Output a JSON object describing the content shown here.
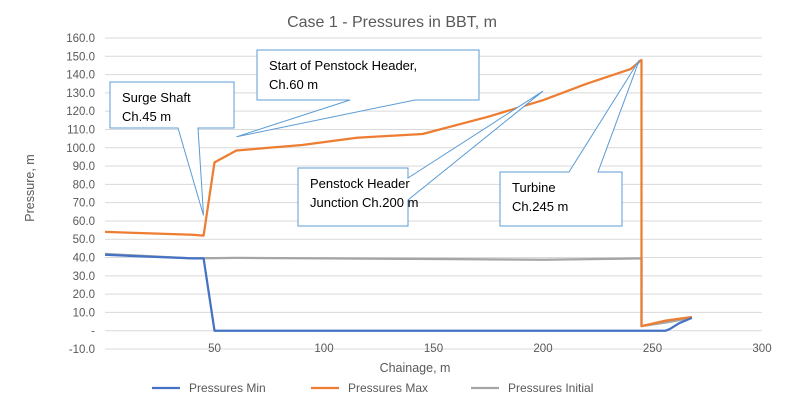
{
  "chart_data": {
    "type": "line",
    "title": "Case 1 - Pressures in BBT, m",
    "xlabel": "Chainage, m",
    "ylabel": "Pressure, m",
    "xlim": [
      0,
      300
    ],
    "ylim": [
      -10,
      160
    ],
    "x_ticks": [
      50,
      100,
      150,
      200,
      250,
      300
    ],
    "x_tick_labels": [
      "50",
      "100",
      "150",
      "200",
      "250",
      "300"
    ],
    "y_ticks": [
      -10,
      0,
      10,
      20,
      30,
      40,
      50,
      60,
      70,
      80,
      90,
      100,
      110,
      120,
      130,
      140,
      150,
      160
    ],
    "y_tick_labels": [
      "-10.0",
      "-",
      "10.0",
      "20.0",
      "30.0",
      "40.0",
      "50.0",
      "60.0",
      "70.0",
      "80.0",
      "90.0",
      "100.0",
      "110.0",
      "120.0",
      "130.0",
      "140.0",
      "150.0",
      "160.0"
    ],
    "grid": "horizontal",
    "legend_position": "bottom",
    "series": [
      {
        "name": "Pressures Min",
        "color": "#4472C4",
        "points": [
          [
            0,
            41.5
          ],
          [
            40,
            39.5
          ],
          [
            45,
            39.5
          ],
          [
            50,
            0
          ],
          [
            60,
            0
          ],
          [
            100,
            0
          ],
          [
            150,
            0
          ],
          [
            200,
            0
          ],
          [
            245,
            0
          ],
          [
            256,
            0
          ],
          [
            258,
            1
          ],
          [
            262,
            4
          ],
          [
            268,
            7
          ]
        ]
      },
      {
        "name": "Pressures Max",
        "color": "#ED7D31",
        "points": [
          [
            0,
            54
          ],
          [
            40,
            52.5
          ],
          [
            45,
            52
          ],
          [
            50,
            92
          ],
          [
            60,
            98.5
          ],
          [
            90,
            101.5
          ],
          [
            115,
            105.5
          ],
          [
            145,
            107.5
          ],
          [
            175,
            117
          ],
          [
            200,
            126
          ],
          [
            220,
            135
          ],
          [
            240,
            143
          ],
          [
            245,
            148
          ],
          [
            245,
            2.5
          ],
          [
            256,
            5.5
          ],
          [
            268,
            7.5
          ]
        ]
      },
      {
        "name": "Pressures Initial",
        "color": "#A5A5A5",
        "points": [
          [
            0,
            42
          ],
          [
            40,
            39.5
          ],
          [
            60,
            39.8
          ],
          [
            100,
            39.5
          ],
          [
            150,
            39.2
          ],
          [
            200,
            38.8
          ],
          [
            245,
            39.5
          ],
          [
            245,
            2.5
          ],
          [
            256,
            4.5
          ],
          [
            268,
            7
          ]
        ]
      }
    ],
    "annotations": [
      {
        "text_lines": [
          "Surge Shaft",
          "Ch.45 m"
        ],
        "x": 45,
        "y": 63,
        "name": "callout-surge-shaft"
      },
      {
        "text_lines": [
          "Start of Penstock Header,",
          "Ch.60 m"
        ],
        "x": 60,
        "y": 106,
        "name": "callout-penstock-header-start"
      },
      {
        "text_lines": [
          "Penstock Header",
          "Junction Ch.200 m"
        ],
        "x": 200,
        "y": 131,
        "name": "callout-penstock-junction"
      },
      {
        "text_lines": [
          "Turbine",
          "Ch.245 m"
        ],
        "x": 244,
        "y": 148,
        "name": "callout-turbine"
      }
    ]
  }
}
